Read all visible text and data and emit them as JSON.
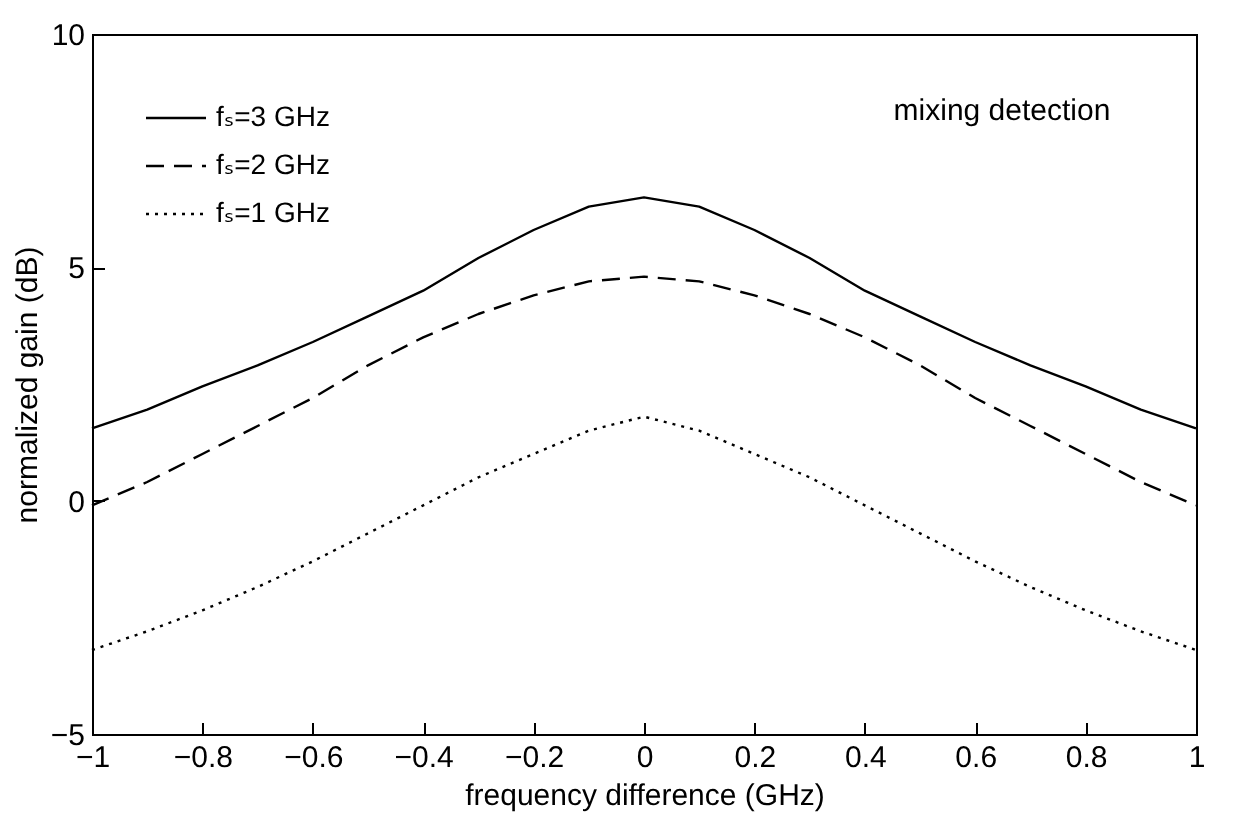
{
  "chart_data": {
    "type": "line",
    "xlabel": "frequency difference (GHz)",
    "ylabel": "normalized gain (dB)",
    "annotations": [
      "mixing detection"
    ],
    "x": [
      -1,
      -0.9,
      -0.8,
      -0.7,
      -0.6,
      -0.5,
      -0.4,
      -0.3,
      -0.2,
      -0.1,
      0,
      0.1,
      0.2,
      0.3,
      0.4,
      0.5,
      0.6,
      0.7,
      0.8,
      0.9,
      1
    ],
    "series": [
      {
        "name": "fₛ=3 GHz",
        "color": "#000000",
        "line_style": "solid",
        "values": [
          1.55,
          1.95,
          2.45,
          2.9,
          3.4,
          3.95,
          4.5,
          5.2,
          5.8,
          6.3,
          6.5,
          6.3,
          5.8,
          5.2,
          4.5,
          3.95,
          3.4,
          2.9,
          2.45,
          1.95,
          1.55
        ]
      },
      {
        "name": "fₛ=2 GHz",
        "color": "#000000",
        "line_style": "dashed",
        "values": [
          -0.1,
          0.4,
          1.0,
          1.6,
          2.2,
          2.9,
          3.5,
          4.0,
          4.4,
          4.7,
          4.8,
          4.7,
          4.4,
          4.0,
          3.5,
          2.9,
          2.2,
          1.6,
          1.0,
          0.4,
          -0.1
        ]
      },
      {
        "name": "fₛ=1 GHz",
        "color": "#000000",
        "line_style": "dotted",
        "values": [
          -3.2,
          -2.8,
          -2.35,
          -1.85,
          -1.3,
          -0.7,
          -0.1,
          0.5,
          1.0,
          1.5,
          1.8,
          1.5,
          1.0,
          0.5,
          -0.1,
          -0.7,
          -1.3,
          -1.85,
          -2.35,
          -2.8,
          -3.2
        ]
      }
    ],
    "xlim": [
      -1,
      1
    ],
    "xticks": [
      -1,
      -0.8,
      -0.6,
      -0.4,
      -0.2,
      0,
      0.2,
      0.4,
      0.6,
      0.8,
      1
    ],
    "ylim": [
      -5,
      10
    ],
    "yticks": [
      -5,
      0,
      5,
      10
    ],
    "grid": false,
    "legend": "top left",
    "marker": "none"
  }
}
